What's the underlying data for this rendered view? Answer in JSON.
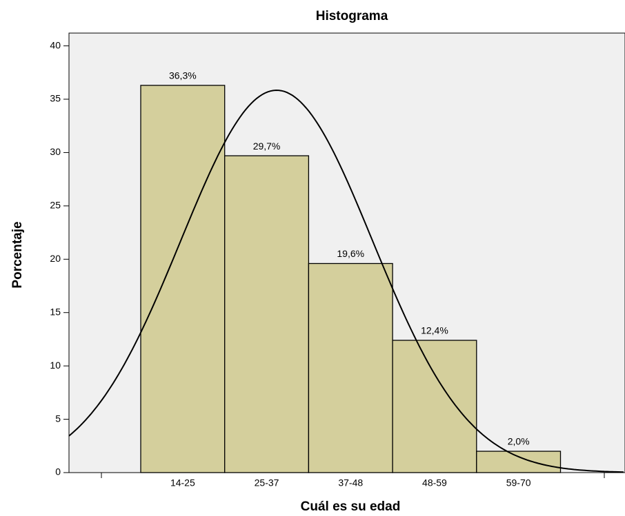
{
  "chart_data": {
    "type": "bar",
    "title": "Histograma",
    "x_label": "Cuál es su edad",
    "y_label": "Porcentaje",
    "categories": [
      "14-25",
      "25-37",
      "37-48",
      "48-59",
      "59-70"
    ],
    "values": [
      36.3,
      29.7,
      19.6,
      12.4,
      2.0
    ],
    "value_labels": [
      "36,3%",
      "29,7%",
      "19,6%",
      "12,4%",
      "2,0%"
    ],
    "color": "#d4cf9c",
    "ylim": [
      0,
      41.2
    ],
    "yticks": [
      0,
      5,
      10,
      15,
      20,
      25,
      30,
      35,
      40
    ],
    "grid": false
  }
}
